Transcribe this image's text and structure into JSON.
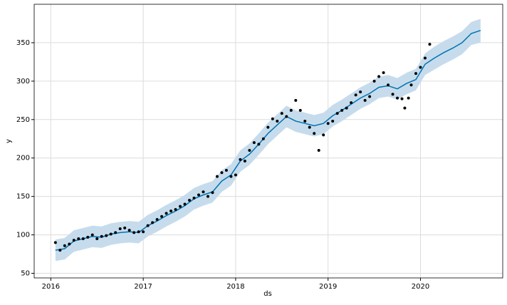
{
  "chart_data": {
    "type": "forecast",
    "xlabel": "ds",
    "ylabel": "y",
    "xlim": [
      2015.82,
      2020.89
    ],
    "xticks": [
      2016,
      2017,
      2018,
      2019,
      2020
    ],
    "ylim": [
      44,
      400
    ],
    "yticks": [
      50,
      100,
      150,
      200,
      250,
      300,
      350
    ],
    "grid": true,
    "points": {
      "color": "#000000",
      "x": [
        2016.05,
        2016.1,
        2016.15,
        2016.2,
        2016.25,
        2016.3,
        2016.35,
        2016.4,
        2016.45,
        2016.5,
        2016.55,
        2016.6,
        2016.65,
        2016.7,
        2016.75,
        2016.8,
        2016.85,
        2016.9,
        2016.95,
        2017.0,
        2017.05,
        2017.1,
        2017.15,
        2017.2,
        2017.25,
        2017.3,
        2017.35,
        2017.4,
        2017.45,
        2017.5,
        2017.55,
        2017.6,
        2017.65,
        2017.7,
        2017.75,
        2017.8,
        2017.85,
        2017.9,
        2017.95,
        2018.0,
        2018.05,
        2018.1,
        2018.15,
        2018.2,
        2018.25,
        2018.3,
        2018.35,
        2018.4,
        2018.45,
        2018.5,
        2018.55,
        2018.6,
        2018.65,
        2018.7,
        2018.75,
        2018.8,
        2018.85,
        2018.9,
        2018.95,
        2019.0,
        2019.05,
        2019.1,
        2019.15,
        2019.2,
        2019.25,
        2019.3,
        2019.35,
        2019.4,
        2019.45,
        2019.5,
        2019.55,
        2019.6,
        2019.65,
        2019.7,
        2019.75,
        2019.8,
        2019.83,
        2019.87,
        2019.9,
        2019.95,
        2020.0,
        2020.05,
        2020.1
      ],
      "values": [
        90,
        80,
        86,
        88,
        93,
        95,
        95,
        97,
        100,
        95,
        98,
        99,
        101,
        103,
        108,
        109,
        106,
        103,
        104,
        104,
        112,
        116,
        120,
        124,
        128,
        131,
        133,
        137,
        140,
        145,
        148,
        152,
        156,
        150,
        155,
        176,
        181,
        184,
        176,
        178,
        198,
        196,
        210,
        220,
        218,
        225,
        240,
        251,
        248,
        258,
        254,
        262,
        275,
        262,
        248,
        240,
        232,
        210,
        230,
        245,
        248,
        258,
        262,
        265,
        272,
        282,
        286,
        275,
        280,
        300,
        306,
        311,
        295,
        283,
        278,
        277,
        265,
        278,
        295,
        310,
        318,
        330,
        348
      ]
    },
    "forecast": {
      "color": "#0072B2",
      "band_color": "#c6dcec",
      "x": [
        2016.05,
        2016.15,
        2016.25,
        2016.35,
        2016.45,
        2016.55,
        2016.65,
        2016.75,
        2016.85,
        2016.95,
        2017.05,
        2017.15,
        2017.25,
        2017.35,
        2017.45,
        2017.55,
        2017.65,
        2017.75,
        2017.85,
        2017.95,
        2018.05,
        2018.15,
        2018.25,
        2018.35,
        2018.45,
        2018.55,
        2018.65,
        2018.75,
        2018.85,
        2018.95,
        2019.05,
        2019.15,
        2019.25,
        2019.35,
        2019.45,
        2019.55,
        2019.65,
        2019.75,
        2019.85,
        2019.95,
        2020.05,
        2020.15,
        2020.25,
        2020.35,
        2020.45,
        2020.55,
        2020.65
      ],
      "values": [
        80,
        82,
        92,
        95,
        98,
        97,
        101,
        103,
        104,
        103,
        112,
        118,
        125,
        131,
        138,
        147,
        152,
        156,
        170,
        178,
        196,
        205,
        218,
        232,
        243,
        254,
        248,
        245,
        242,
        245,
        255,
        262,
        270,
        278,
        284,
        292,
        294,
        290,
        297,
        302,
        322,
        330,
        337,
        343,
        350,
        362,
        366
      ],
      "lower": [
        66,
        68,
        78,
        81,
        84,
        83,
        87,
        89,
        90,
        89,
        98,
        104,
        111,
        117,
        124,
        133,
        138,
        142,
        156,
        164,
        182,
        191,
        204,
        218,
        229,
        240,
        234,
        231,
        228,
        231,
        241,
        248,
        256,
        264,
        270,
        278,
        280,
        276,
        283,
        288,
        308,
        315,
        322,
        328,
        335,
        347,
        350
      ],
      "upper": [
        94,
        96,
        106,
        109,
        112,
        111,
        115,
        117,
        118,
        117,
        126,
        132,
        139,
        145,
        152,
        161,
        166,
        170,
        184,
        192,
        210,
        219,
        232,
        246,
        257,
        268,
        262,
        259,
        256,
        259,
        269,
        276,
        284,
        292,
        298,
        306,
        308,
        304,
        311,
        316,
        336,
        345,
        352,
        358,
        365,
        377,
        381
      ]
    }
  }
}
